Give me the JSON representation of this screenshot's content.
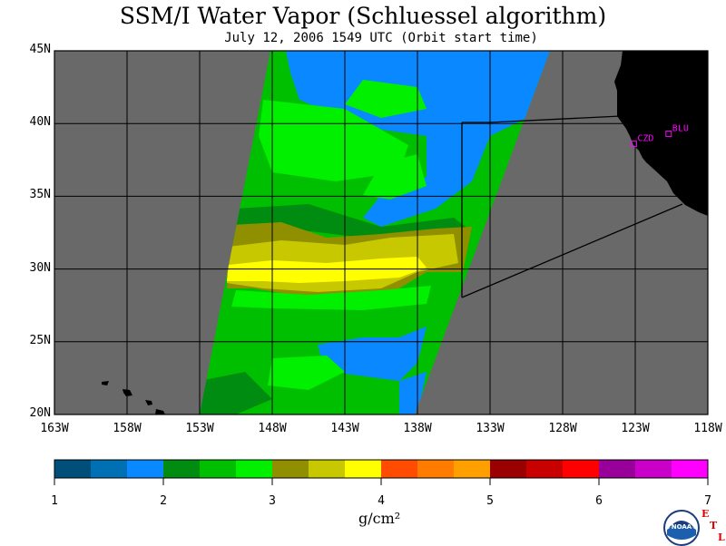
{
  "header": {
    "title": "SSM/I Water Vapor (Schluessel algorithm)",
    "subtitle": "July 12, 2006  1549 UTC  (Orbit start time)"
  },
  "map": {
    "latitude_labels": [
      "45N",
      "40N",
      "35N",
      "30N",
      "25N",
      "20N"
    ],
    "longitude_labels": [
      "163W",
      "158W",
      "153W",
      "148W",
      "143W",
      "138W",
      "133W",
      "128W",
      "123W",
      "118W"
    ],
    "lat_range": [
      20,
      45
    ],
    "lon_range": [
      -163,
      -118
    ],
    "ocean_color": "#696969",
    "land_color": "#000000",
    "stations": [
      {
        "label": "CZD",
        "lon": -123.1,
        "lat": 38.6
      },
      {
        "label": "BLU",
        "lon": -120.7,
        "lat": 39.3
      }
    ],
    "station_color": "#ff00ff"
  },
  "colorbar": {
    "tick_labels": [
      "1",
      "2",
      "3",
      "4",
      "5",
      "6",
      "7"
    ],
    "unit": "g/cm²",
    "colors": [
      "#004f7a",
      "#0070b4",
      "#0a88ff",
      "#008c10",
      "#00bf00",
      "#00f000",
      "#8f8f00",
      "#c8c800",
      "#ffff00",
      "#ff4c00",
      "#ff7c00",
      "#ff9f00",
      "#9b0000",
      "#c80000",
      "#ff0000",
      "#990099",
      "#c800c8",
      "#ff00ff"
    ]
  },
  "logo": {
    "text": "NOAA",
    "etl": [
      "E",
      "T",
      "L"
    ]
  }
}
